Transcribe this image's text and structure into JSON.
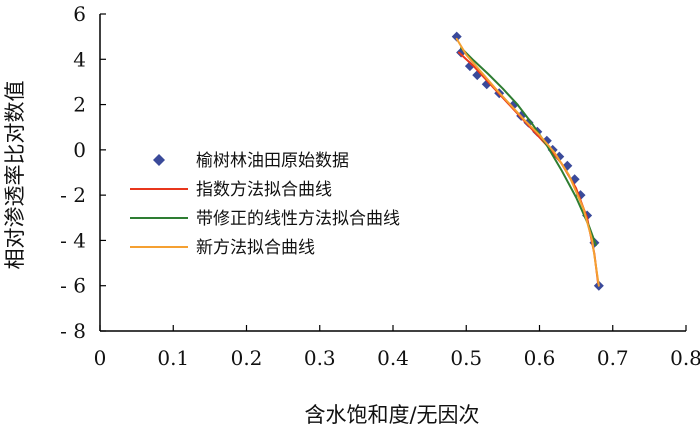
{
  "chart_data": {
    "type": "scatter",
    "title": "",
    "xlabel": "含水饱和度/无因次",
    "ylabel": "相对渗透率比对数值",
    "xlim": [
      0,
      0.8
    ],
    "ylim": [
      -8,
      6
    ],
    "x_ticks": [
      0,
      0.1,
      0.2,
      0.3,
      0.4,
      0.5,
      0.6,
      0.7,
      0.8
    ],
    "y_ticks": [
      6,
      4,
      2,
      0,
      -2,
      -4,
      -6,
      -8
    ],
    "x_tick_labels": [
      "0",
      "0.1",
      "0.2",
      "0.3",
      "0.4",
      "0.5",
      "0.6",
      "0.7",
      "0.8"
    ],
    "y_tick_labels": [
      "6",
      "4",
      "2",
      "0",
      "- 2",
      "- 4",
      "- 6",
      "- 8"
    ],
    "grid": false,
    "legend_position": "left-middle",
    "series": [
      {
        "name": "榆树林油田原始数据",
        "kind": "markers",
        "marker": "diamond",
        "color": "#3a4a9a",
        "x": [
          0.487,
          0.493,
          0.505,
          0.515,
          0.528,
          0.545,
          0.565,
          0.575,
          0.585,
          0.597,
          0.61,
          0.618,
          0.627,
          0.638,
          0.648,
          0.656,
          0.665,
          0.675,
          0.681
        ],
        "y": [
          5.0,
          4.3,
          3.7,
          3.3,
          2.9,
          2.5,
          2.0,
          1.5,
          1.2,
          0.8,
          0.4,
          0.0,
          -0.3,
          -0.7,
          -1.3,
          -2.0,
          -2.9,
          -4.1,
          -6.0
        ]
      },
      {
        "name": "指数方法拟合曲线",
        "kind": "line",
        "color": "#e8361c",
        "x": [
          0.49,
          0.51,
          0.53,
          0.55,
          0.57,
          0.59,
          0.61,
          0.63,
          0.65,
          0.665,
          0.675,
          0.68
        ],
        "y": [
          4.3,
          3.7,
          3.0,
          2.3,
          1.6,
          0.9,
          0.2,
          -0.6,
          -1.7,
          -3.0,
          -4.6,
          -5.9
        ]
      },
      {
        "name": "带修正的线性方法拟合曲线",
        "kind": "line",
        "color": "#2e7d32",
        "x": [
          0.493,
          0.51,
          0.53,
          0.55,
          0.57,
          0.59,
          0.61,
          0.63,
          0.65,
          0.668,
          0.677
        ],
        "y": [
          4.5,
          3.95,
          3.35,
          2.7,
          2.0,
          1.15,
          0.2,
          -0.9,
          -2.1,
          -3.4,
          -4.2
        ]
      },
      {
        "name": "新方法拟合曲线",
        "kind": "line",
        "color": "#f5a031",
        "x": [
          0.487,
          0.5,
          0.52,
          0.54,
          0.56,
          0.58,
          0.6,
          0.62,
          0.64,
          0.66,
          0.672,
          0.681
        ],
        "y": [
          4.9,
          4.2,
          3.45,
          2.7,
          2.0,
          1.3,
          0.65,
          -0.1,
          -1.1,
          -2.6,
          -4.0,
          -6.0
        ]
      }
    ]
  }
}
